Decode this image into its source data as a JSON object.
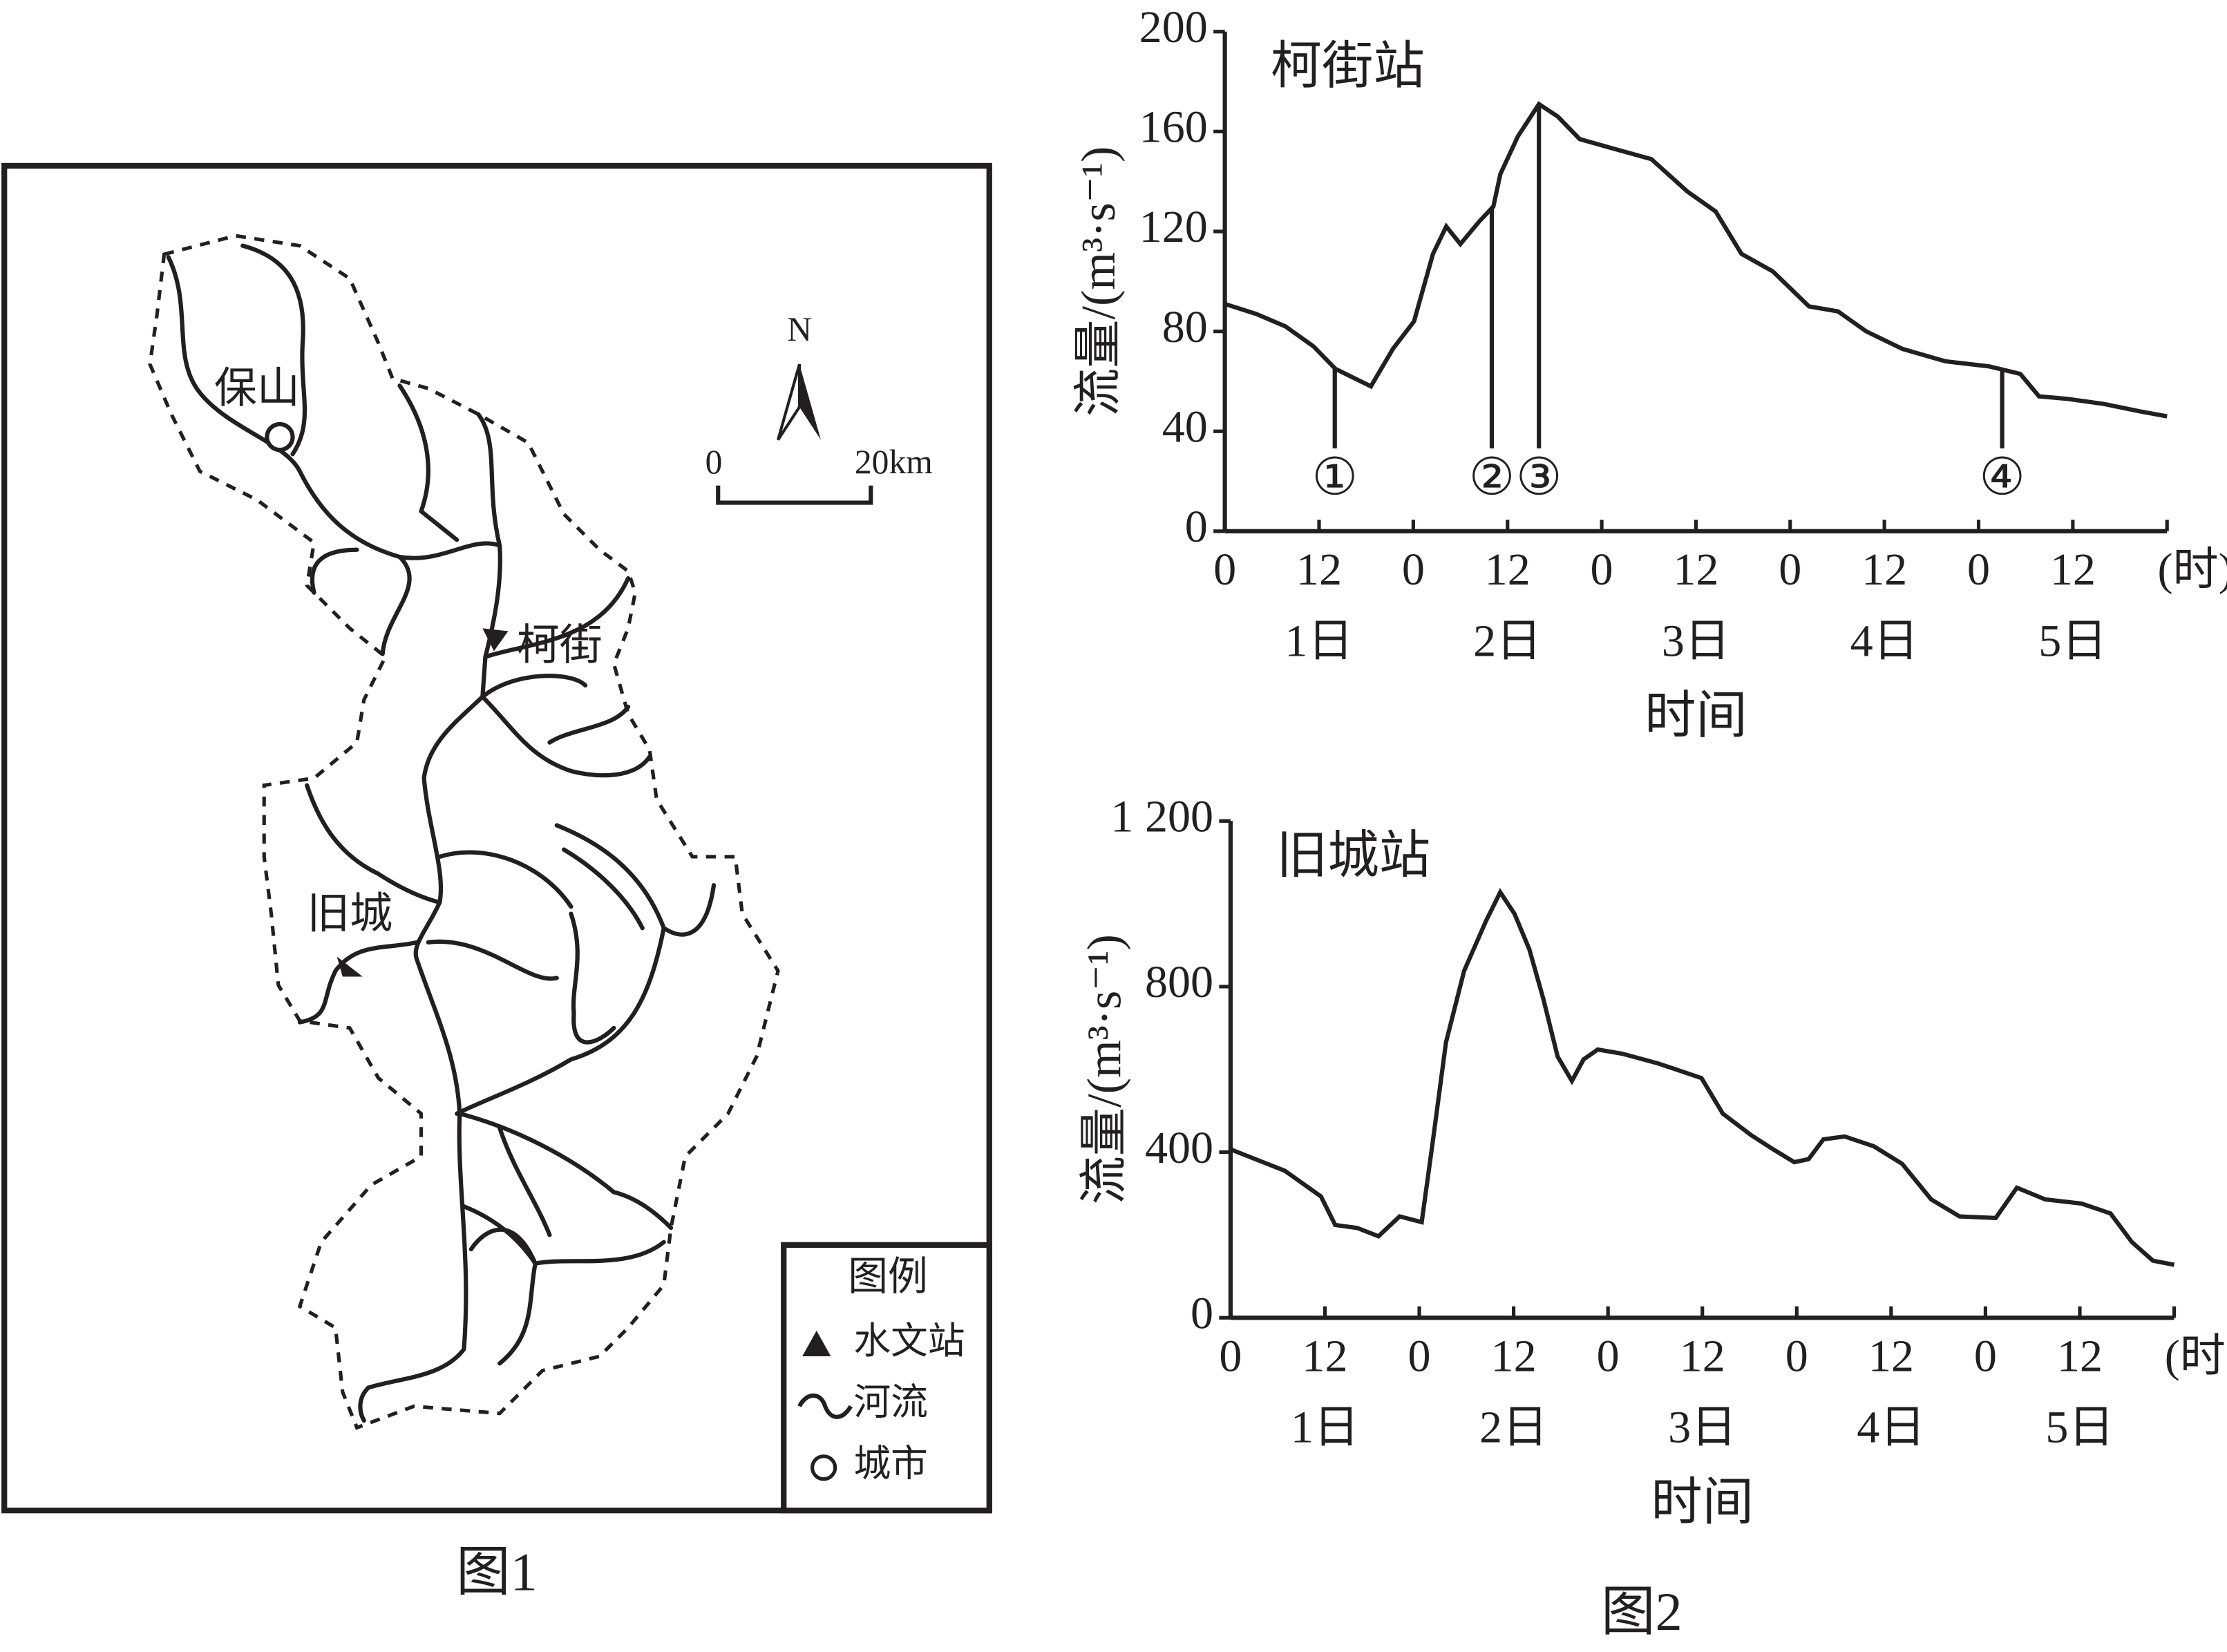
{
  "map": {
    "cities": [
      "保山",
      "柯街",
      "旧城"
    ],
    "north": "N",
    "scale": [
      "0",
      "20km"
    ],
    "legend_title": "图例",
    "legend": [
      "水文站",
      "河流",
      "城市"
    ],
    "caption": "图1"
  },
  "caption2": "图2",
  "chart_data": [
    {
      "type": "line",
      "title": "柯街站",
      "ylabel": "流量/(m³·s⁻¹)",
      "xlabel": "时间",
      "x_unit": "(时)",
      "color": "#231f20",
      "x": [
        0,
        4,
        7.7,
        11.3,
        14.1,
        18.6,
        21.4,
        24.1,
        26.5,
        28.2,
        30,
        32.4,
        34.2,
        35.1,
        37.3,
        40,
        42.4,
        45.2,
        49.7,
        54.3,
        58.9,
        62.5,
        65.8,
        69.8,
        74.4,
        78.1,
        81.7,
        86.3,
        91.8,
        97.3,
        101.3,
        103.7,
        107.3,
        111.9,
        116.5,
        120
      ],
      "values": [
        91,
        87,
        82,
        74,
        65,
        58,
        73,
        84,
        111,
        122,
        115,
        124,
        130,
        143,
        158,
        171,
        166,
        157,
        153,
        149,
        136,
        128,
        111,
        104,
        90,
        88,
        80,
        73,
        68,
        66,
        63,
        54,
        53,
        51,
        48,
        46
      ],
      "xlim": [
        0,
        120
      ],
      "ylim": [
        0,
        200
      ],
      "yticks": [
        0,
        40,
        80,
        120,
        160,
        200
      ],
      "xticks": [
        0,
        12,
        {
          "value": 24,
          "label": "0"
        },
        {
          "value": 36,
          "label": "12"
        },
        {
          "value": 48,
          "label": "0"
        },
        {
          "value": 60,
          "label": "12"
        },
        {
          "value": 72,
          "label": "0"
        },
        {
          "value": 84,
          "label": "12"
        },
        {
          "value": 96,
          "label": "0"
        },
        {
          "value": 108,
          "label": "12"
        }
      ],
      "categories": [
        "1日",
        "2日",
        "3日",
        "4日",
        "5日"
      ],
      "markers": [
        {
          "label": "①",
          "x": 14
        },
        {
          "label": "②",
          "x": 34
        },
        {
          "label": "③",
          "x": 40
        },
        {
          "label": "④",
          "x": 99
        }
      ]
    },
    {
      "type": "line",
      "title": "旧城站",
      "ylabel": "流量/(m³·s⁻¹)",
      "xlabel": "时间",
      "x_unit": "(时)",
      "color": "#231f20",
      "x": [
        0,
        6.9,
        11.5,
        13.3,
        16.1,
        18.8,
        21.5,
        24.3,
        25.7,
        27.4,
        29.7,
        32.5,
        34.3,
        36.1,
        38,
        39.8,
        41.6,
        43.4,
        44.9,
        46.7,
        49.8,
        54.4,
        59.9,
        62.6,
        66.2,
        69,
        71.7,
        73.5,
        75.4,
        78.1,
        81.8,
        85.4,
        89.1,
        92.7,
        97.3,
        100,
        103.6,
        108.2,
        111.9,
        114.6,
        117.3,
        120
      ],
      "values": [
        407,
        355,
        293,
        224,
        217,
        197,
        245,
        231,
        424,
        665,
        838,
        959,
        1028,
        976,
        890,
        769,
        631,
        572,
        624,
        648,
        638,
        614,
        579,
        493,
        441,
        407,
        376,
        383,
        431,
        438,
        414,
        372,
        286,
        245,
        241,
        314,
        286,
        276,
        252,
        183,
        138,
        128
      ],
      "xlim": [
        0,
        120
      ],
      "ylim": [
        0,
        1200
      ],
      "yticks": [
        0,
        400,
        800,
        {
          "value": 1200,
          "label": "1 200"
        }
      ],
      "xticks": [
        0,
        12,
        {
          "value": 24,
          "label": "0"
        },
        {
          "value": 36,
          "label": "12"
        },
        {
          "value": 48,
          "label": "0"
        },
        {
          "value": 60,
          "label": "12"
        },
        {
          "value": 72,
          "label": "0"
        },
        {
          "value": 84,
          "label": "12"
        },
        {
          "value": 96,
          "label": "0"
        },
        {
          "value": 108,
          "label": "12"
        }
      ],
      "categories": [
        "1日",
        "2日",
        "3日",
        "4日",
        "5日"
      ]
    }
  ]
}
